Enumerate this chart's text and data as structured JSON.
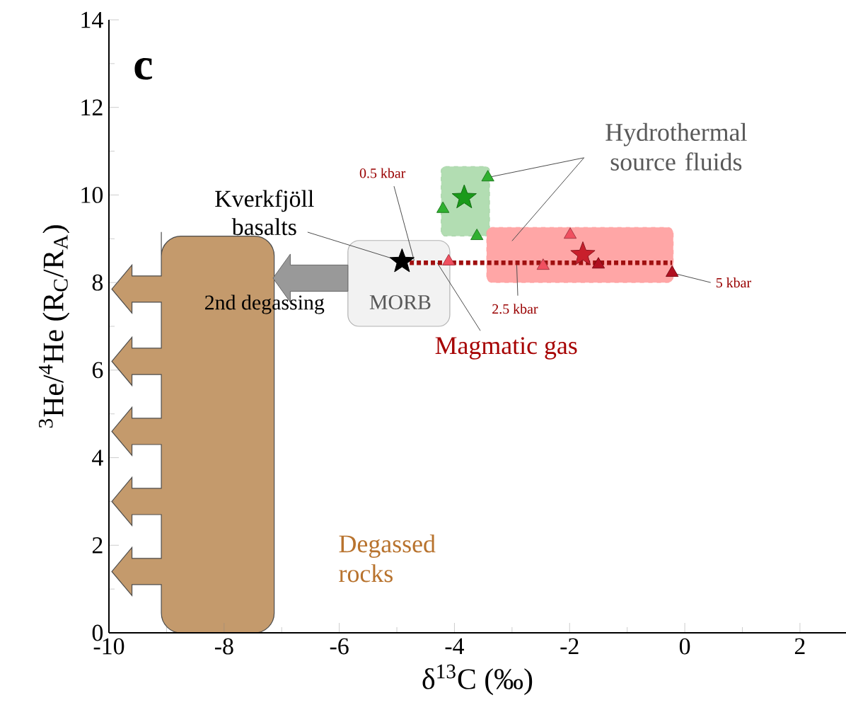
{
  "chart_data": {
    "type": "scatter",
    "xlabel": "δ$^{13}$C (‰)",
    "ylabel": "$^{3}$He/$^{4}$He (R$_{C}$/R$_{A}$)",
    "xlim": [
      -10,
      2.8
    ],
    "ylim": [
      0,
      14
    ],
    "xticks": [
      -10,
      -8,
      -6,
      -4,
      -2,
      0,
      2
    ],
    "yticks": [
      0,
      2,
      4,
      6,
      8,
      10,
      12,
      14
    ],
    "series": [
      {
        "type": "line",
        "color": "#a01010",
        "line_style": "dotted",
        "marker": "none",
        "x": [
          -4.9,
          -0.22
        ],
        "values": [
          8.45,
          8.45
        ]
      },
      {
        "marker": "triangle",
        "color": "#30b030",
        "x": [
          -3.42,
          -4.2,
          -3.61
        ],
        "values": [
          10.4,
          9.68,
          9.06
        ]
      },
      {
        "marker": "triangle",
        "color": "#f05060",
        "x": [
          -1.99,
          -2.46,
          -4.1
        ],
        "values": [
          9.09,
          8.38,
          8.48
        ]
      },
      {
        "marker": "star",
        "color": "#000000",
        "x": [
          -4.91
        ],
        "values": [
          8.48
        ]
      },
      {
        "marker": "star",
        "color": "#1a9a1a",
        "x": [
          -3.83
        ],
        "values": [
          9.94
        ]
      },
      {
        "marker": "star",
        "color": "#c8202c",
        "x": [
          -1.77
        ],
        "values": [
          8.64
        ]
      },
      {
        "marker": "triangle",
        "color": "#b01020",
        "x": [
          -1.5,
          -0.22
        ],
        "values": [
          8.41,
          8.22
        ]
      }
    ],
    "annotations": [
      "c",
      {
        "text": "Kverkfjöll basalts",
        "x": -4.91,
        "y": 8.48
      },
      {
        "text": "0.5 kbar",
        "x": -4.7,
        "y": 8.5
      },
      {
        "text": "Hydrothermal source fluids",
        "x": -3.42,
        "y": 10.4
      },
      "MORB",
      "2nd degassing",
      {
        "text": "2.5 kbar",
        "x": -2.92,
        "y": 8.45
      },
      {
        "text": "5 kbar",
        "x": -0.22,
        "y": 8.22
      },
      {
        "text": "Magmatic gas",
        "x": -4.3,
        "y": 8.45
      },
      "Degassed rocks"
    ]
  }
}
